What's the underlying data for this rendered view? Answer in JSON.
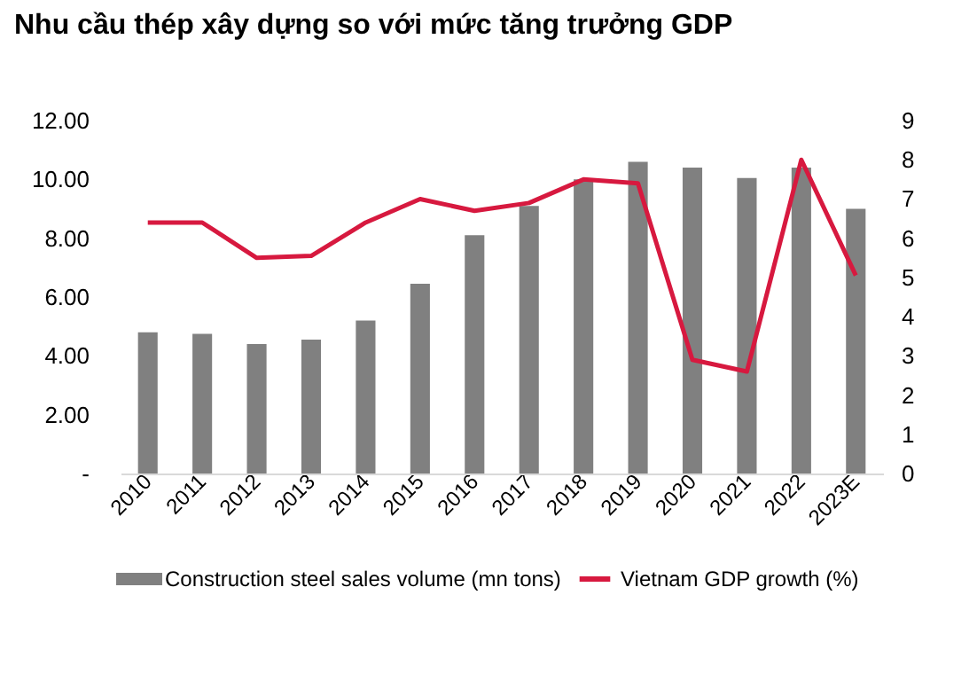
{
  "chart_data": {
    "type": "bar",
    "title": "Nhu cầu thép xây dựng so với mức tăng trưởng GDP",
    "categories": [
      "2010",
      "2011",
      "2012",
      "2013",
      "2014",
      "2015",
      "2016",
      "2017",
      "2018",
      "2019",
      "2020",
      "2021",
      "2022",
      "2023E"
    ],
    "series": [
      {
        "name": "Construction steel sales volume (mn tons)",
        "color": "#808080",
        "values": [
          4.8,
          4.75,
          4.4,
          4.55,
          5.2,
          6.45,
          8.1,
          9.1,
          10.0,
          10.6,
          10.4,
          10.05,
          10.4,
          9.0
        ]
      },
      {
        "name": "Vietnam GDP growth (%)",
        "type": "line",
        "axis": "y2",
        "color": "#d7193f",
        "values": [
          6.4,
          6.4,
          5.5,
          5.55,
          6.4,
          7.0,
          6.7,
          6.9,
          7.5,
          7.4,
          2.9,
          2.6,
          8.0,
          5.05
        ]
      }
    ],
    "ylim": [
      0,
      12
    ],
    "yticks": [
      {
        "value": 0,
        "label": "-"
      },
      {
        "value": 2,
        "label": "2.00"
      },
      {
        "value": 4,
        "label": "4.00"
      },
      {
        "value": 6,
        "label": "6.00"
      },
      {
        "value": 8,
        "label": "8.00"
      },
      {
        "value": 10,
        "label": "10.00"
      },
      {
        "value": 12,
        "label": "12.00"
      }
    ],
    "y2lim": [
      0,
      9
    ],
    "y2ticks": [
      0,
      1,
      2,
      3,
      4,
      5,
      6,
      7,
      8,
      9
    ],
    "grid": false,
    "legend": "bottom"
  }
}
